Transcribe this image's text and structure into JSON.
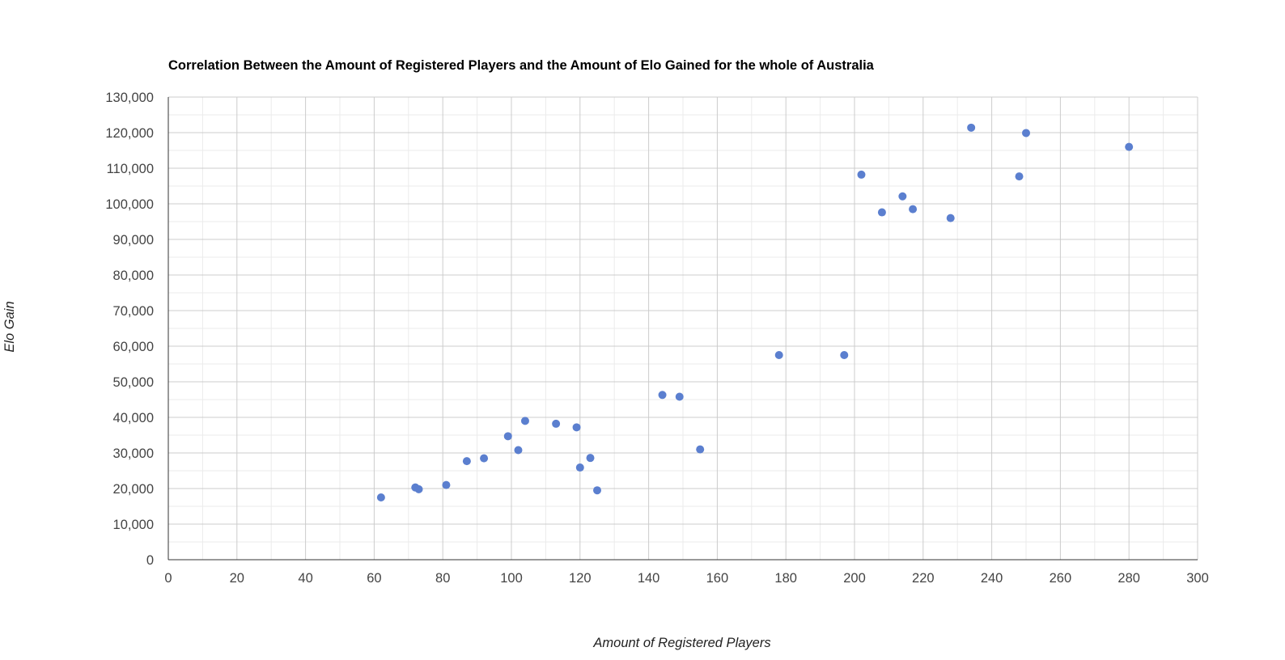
{
  "chart_data": {
    "type": "scatter",
    "title": "Correlation Between the Amount of Registered Players and the Amount of Elo Gained for the whole of Australia",
    "xlabel": "Amount of Registered Players",
    "ylabel": "Elo Gain",
    "xlim": [
      0,
      300
    ],
    "ylim": [
      0,
      130000
    ],
    "x_ticks": [
      "0",
      "20",
      "40",
      "60",
      "80",
      "100",
      "120",
      "140",
      "160",
      "180",
      "200",
      "220",
      "240",
      "260",
      "280",
      "300"
    ],
    "y_ticks": [
      "0",
      "10,000",
      "20,000",
      "30,000",
      "40,000",
      "50,000",
      "60,000",
      "70,000",
      "80,000",
      "90,000",
      "100,000",
      "110,000",
      "120,000",
      "130,000"
    ],
    "grid": true,
    "legend": "none",
    "color": "#5b7fcf",
    "points": [
      [
        62,
        17500
      ],
      [
        72,
        20300
      ],
      [
        73,
        19800
      ],
      [
        81,
        21000
      ],
      [
        87,
        27700
      ],
      [
        92,
        28500
      ],
      [
        99,
        34700
      ],
      [
        102,
        30800
      ],
      [
        104,
        39000
      ],
      [
        113,
        38200
      ],
      [
        119,
        37200
      ],
      [
        120,
        25900
      ],
      [
        123,
        28600
      ],
      [
        125,
        19500
      ],
      [
        144,
        46300
      ],
      [
        149,
        45800
      ],
      [
        155,
        31000
      ],
      [
        178,
        57500
      ],
      [
        197,
        57500
      ],
      [
        202,
        108200
      ],
      [
        208,
        97600
      ],
      [
        214,
        102100
      ],
      [
        217,
        98500
      ],
      [
        228,
        96000
      ],
      [
        234,
        121400
      ],
      [
        248,
        107700
      ],
      [
        250,
        119900
      ],
      [
        280,
        116000
      ]
    ]
  }
}
